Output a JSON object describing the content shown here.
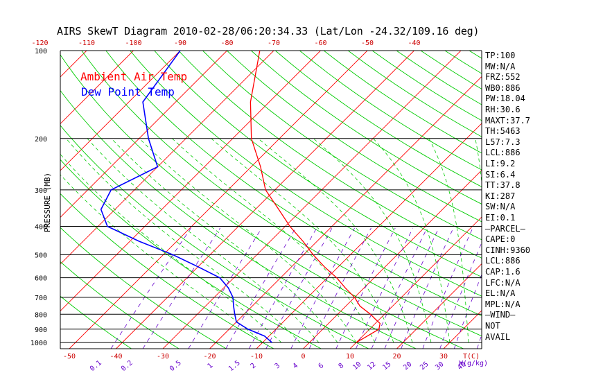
{
  "chart_data": {
    "type": "skew-t",
    "title": "AIRS SkewT Diagram 2010-02-28/06:20:34.33 (Lat/Lon -24.32/109.16 deg)",
    "ylabel": "PRESSURE (MB)",
    "xlabel": "T(C)",
    "mixing_ratio_unit": "W(g/kg)",
    "legend": [
      "Ambient Air Temp",
      "Dew Point Temp"
    ],
    "pressure_ticks": [
      100,
      200,
      300,
      400,
      500,
      600,
      700,
      800,
      900,
      1000
    ],
    "top_temp_ticks": [
      -120,
      -110,
      -100,
      -90,
      -80,
      -70,
      -60,
      -50,
      -40
    ],
    "bottom_temp_ticks": [
      -50,
      -40,
      -30,
      -20,
      -10,
      0,
      10,
      20,
      30
    ],
    "mixing_ratio_ticks": [
      "0.1",
      "0.2",
      "0.5",
      "1",
      "1.5",
      "2",
      "3",
      "4",
      "6",
      "8",
      "10",
      "12",
      "15",
      "20",
      "25",
      "30",
      "40"
    ],
    "series": [
      {
        "name": "Ambient Air Temp",
        "color": "#ff0000",
        "pressure_mb": [
          100,
          150,
          200,
          250,
          300,
          350,
          400,
          450,
          500,
          550,
          600,
          650,
          700,
          750,
          800,
          830,
          860,
          900,
          950,
          1000
        ],
        "temp_c": [
          -73,
          -64,
          -56,
          -48,
          -42,
          -35,
          -29,
          -23,
          -18,
          -13,
          -8,
          -4,
          0,
          3,
          7,
          9,
          11,
          12,
          11,
          10
        ]
      },
      {
        "name": "Dew Point Temp",
        "color": "#0000ff",
        "pressure_mb": [
          100,
          150,
          200,
          250,
          300,
          350,
          400,
          450,
          500,
          550,
          600,
          650,
          700,
          750,
          800,
          850,
          900,
          950,
          1000
        ],
        "temp_c": [
          -90,
          -87,
          -78,
          -70,
          -75,
          -73,
          -68,
          -58,
          -48,
          -40,
          -33,
          -29,
          -26,
          -24,
          -22,
          -20,
          -16,
          -11,
          -8
        ]
      }
    ]
  },
  "indices": [
    "TP:100",
    "MW:N/A",
    "FRZ:552",
    "WB0:886",
    "PW:18.04",
    "RH:30.6",
    "MAXT:37.7",
    "TH:5463",
    "L57:7.3",
    "LCL:886",
    "LI:9.2",
    "SI:6.4",
    "TT:37.8",
    "KI:287",
    "SW:N/A",
    "EI:0.1",
    "—PARCEL—",
    "CAPE:0",
    "CINH:9360",
    "LCL:886",
    "CAP:1.6",
    "LFC:N/A",
    "EL:N/A",
    "MPL:N/A",
    "—WIND—",
    "NOT",
    "AVAIL"
  ],
  "colors": {
    "isotherm": "#ff0000",
    "dry_adiabat": "#00cc00",
    "moist_adiabat": "#00cc00",
    "mixing_ratio": "#6600cc",
    "temp_axis_labels": "#cc0000",
    "mixing_axis_labels": "#6600cc",
    "axes": "#000000"
  }
}
